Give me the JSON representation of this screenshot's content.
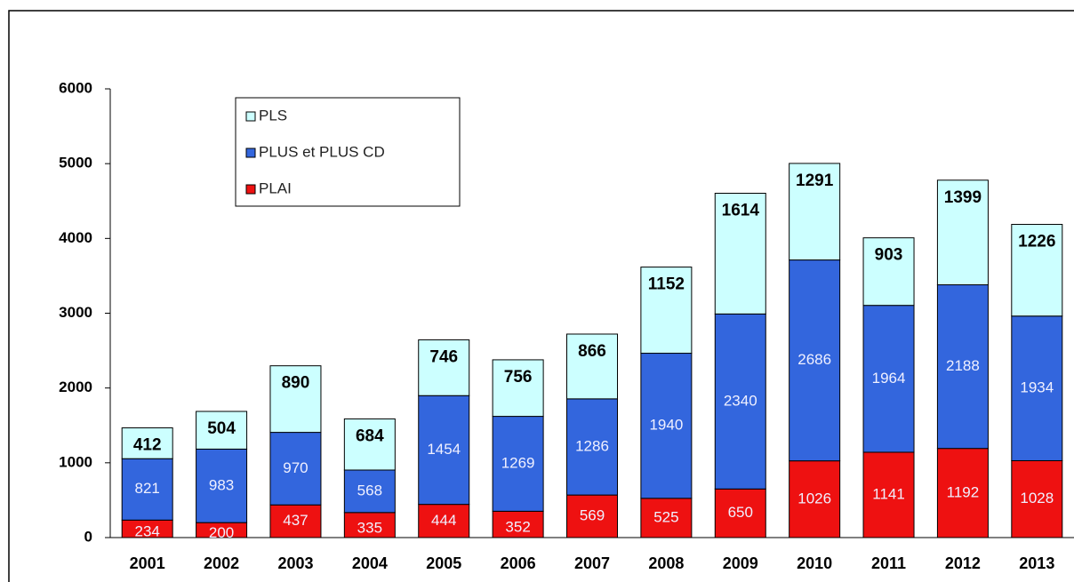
{
  "chart_data": {
    "type": "stacked_bar",
    "categories": [
      "2001",
      "2002",
      "2003",
      "2004",
      "2005",
      "2006",
      "2007",
      "2008",
      "2009",
      "2010",
      "2011",
      "2012",
      "2013"
    ],
    "series": [
      {
        "name": "PLAI",
        "color": "#ee1111",
        "values": [
          234,
          200,
          437,
          335,
          444,
          352,
          569,
          525,
          650,
          1026,
          1141,
          1192,
          1028
        ]
      },
      {
        "name": "PLUS et PLUS CD",
        "color": "#3366dd",
        "values": [
          821,
          983,
          970,
          568,
          1454,
          1269,
          1286,
          1940,
          2340,
          2686,
          1964,
          2188,
          1934
        ]
      },
      {
        "name": "PLS",
        "color": "#ccffff",
        "values": [
          412,
          504,
          890,
          684,
          746,
          756,
          866,
          1152,
          1614,
          1291,
          903,
          1399,
          1226
        ]
      }
    ],
    "ylim": [
      0,
      6000
    ],
    "yticks": [
      0,
      1000,
      2000,
      3000,
      4000,
      5000,
      6000
    ],
    "legend": "upper left"
  }
}
